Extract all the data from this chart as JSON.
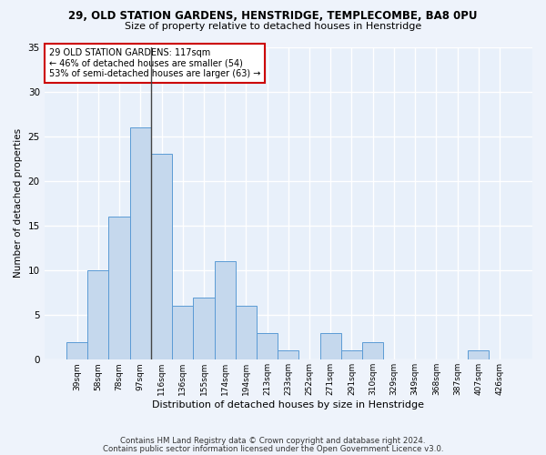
{
  "title1": "29, OLD STATION GARDENS, HENSTRIDGE, TEMPLECOMBE, BA8 0PU",
  "title2": "Size of property relative to detached houses in Henstridge",
  "xlabel": "Distribution of detached houses by size in Henstridge",
  "ylabel": "Number of detached properties",
  "categories": [
    "39sqm",
    "58sqm",
    "78sqm",
    "97sqm",
    "116sqm",
    "136sqm",
    "155sqm",
    "174sqm",
    "194sqm",
    "213sqm",
    "233sqm",
    "252sqm",
    "271sqm",
    "291sqm",
    "310sqm",
    "329sqm",
    "349sqm",
    "368sqm",
    "387sqm",
    "407sqm",
    "426sqm"
  ],
  "values": [
    2,
    10,
    16,
    26,
    23,
    6,
    7,
    11,
    6,
    3,
    1,
    0,
    3,
    1,
    2,
    0,
    0,
    0,
    0,
    1,
    0
  ],
  "bar_color": "#c5d8ed",
  "bar_edge_color": "#5b9bd5",
  "vline_index": 4,
  "vline_color": "#444444",
  "annotation_text": "29 OLD STATION GARDENS: 117sqm\n← 46% of detached houses are smaller (54)\n53% of semi-detached houses are larger (63) →",
  "annotation_box_color": "#ffffff",
  "annotation_box_edge": "#cc0000",
  "ylim": [
    0,
    35
  ],
  "yticks": [
    0,
    5,
    10,
    15,
    20,
    25,
    30,
    35
  ],
  "fig_bg_color": "#eef3fb",
  "ax_bg_color": "#e8f0fa",
  "grid_color": "#ffffff",
  "footer1": "Contains HM Land Registry data © Crown copyright and database right 2024.",
  "footer2": "Contains public sector information licensed under the Open Government Licence v3.0."
}
